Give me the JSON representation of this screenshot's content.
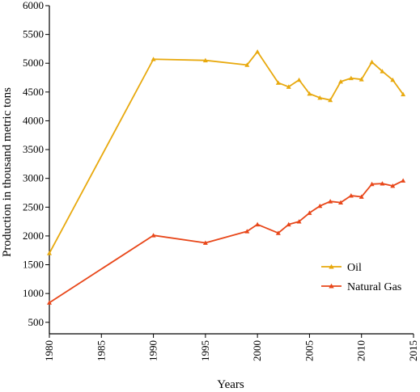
{
  "chart_data": {
    "type": "line",
    "title": "",
    "xlabel": "Years",
    "ylabel": "Production in thousand metric tons",
    "xlim": [
      1980,
      2015
    ],
    "ylim": [
      500,
      6000
    ],
    "y_axis_bottom": 300,
    "xticks": [
      1980,
      1985,
      1990,
      1995,
      2000,
      2005,
      2010,
      2015
    ],
    "yticks": [
      500,
      1000,
      1500,
      2000,
      2500,
      3000,
      3500,
      4000,
      4500,
      5000,
      5500,
      6000
    ],
    "grid": false,
    "legend_position": "bottom-right",
    "x": [
      1980,
      1990,
      1995,
      1999,
      2000,
      2002,
      2003,
      2004,
      2005,
      2006,
      2007,
      2008,
      2009,
      2010,
      2011,
      2012,
      2013,
      2014
    ],
    "series": [
      {
        "name": "Oil",
        "color": "#E8A90E",
        "marker": "triangle",
        "values": [
          1700,
          5070,
          5050,
          4970,
          5200,
          4660,
          4590,
          4710,
          4470,
          4400,
          4360,
          4680,
          4740,
          4720,
          5020,
          4860,
          4710,
          4460
        ]
      },
      {
        "name": "Natural Gas",
        "color": "#E8471A",
        "marker": "triangle",
        "values": [
          840,
          2010,
          1880,
          2080,
          2200,
          2050,
          2200,
          2250,
          2400,
          2520,
          2600,
          2580,
          2700,
          2680,
          2900,
          2910,
          2870,
          2960
        ]
      }
    ]
  }
}
